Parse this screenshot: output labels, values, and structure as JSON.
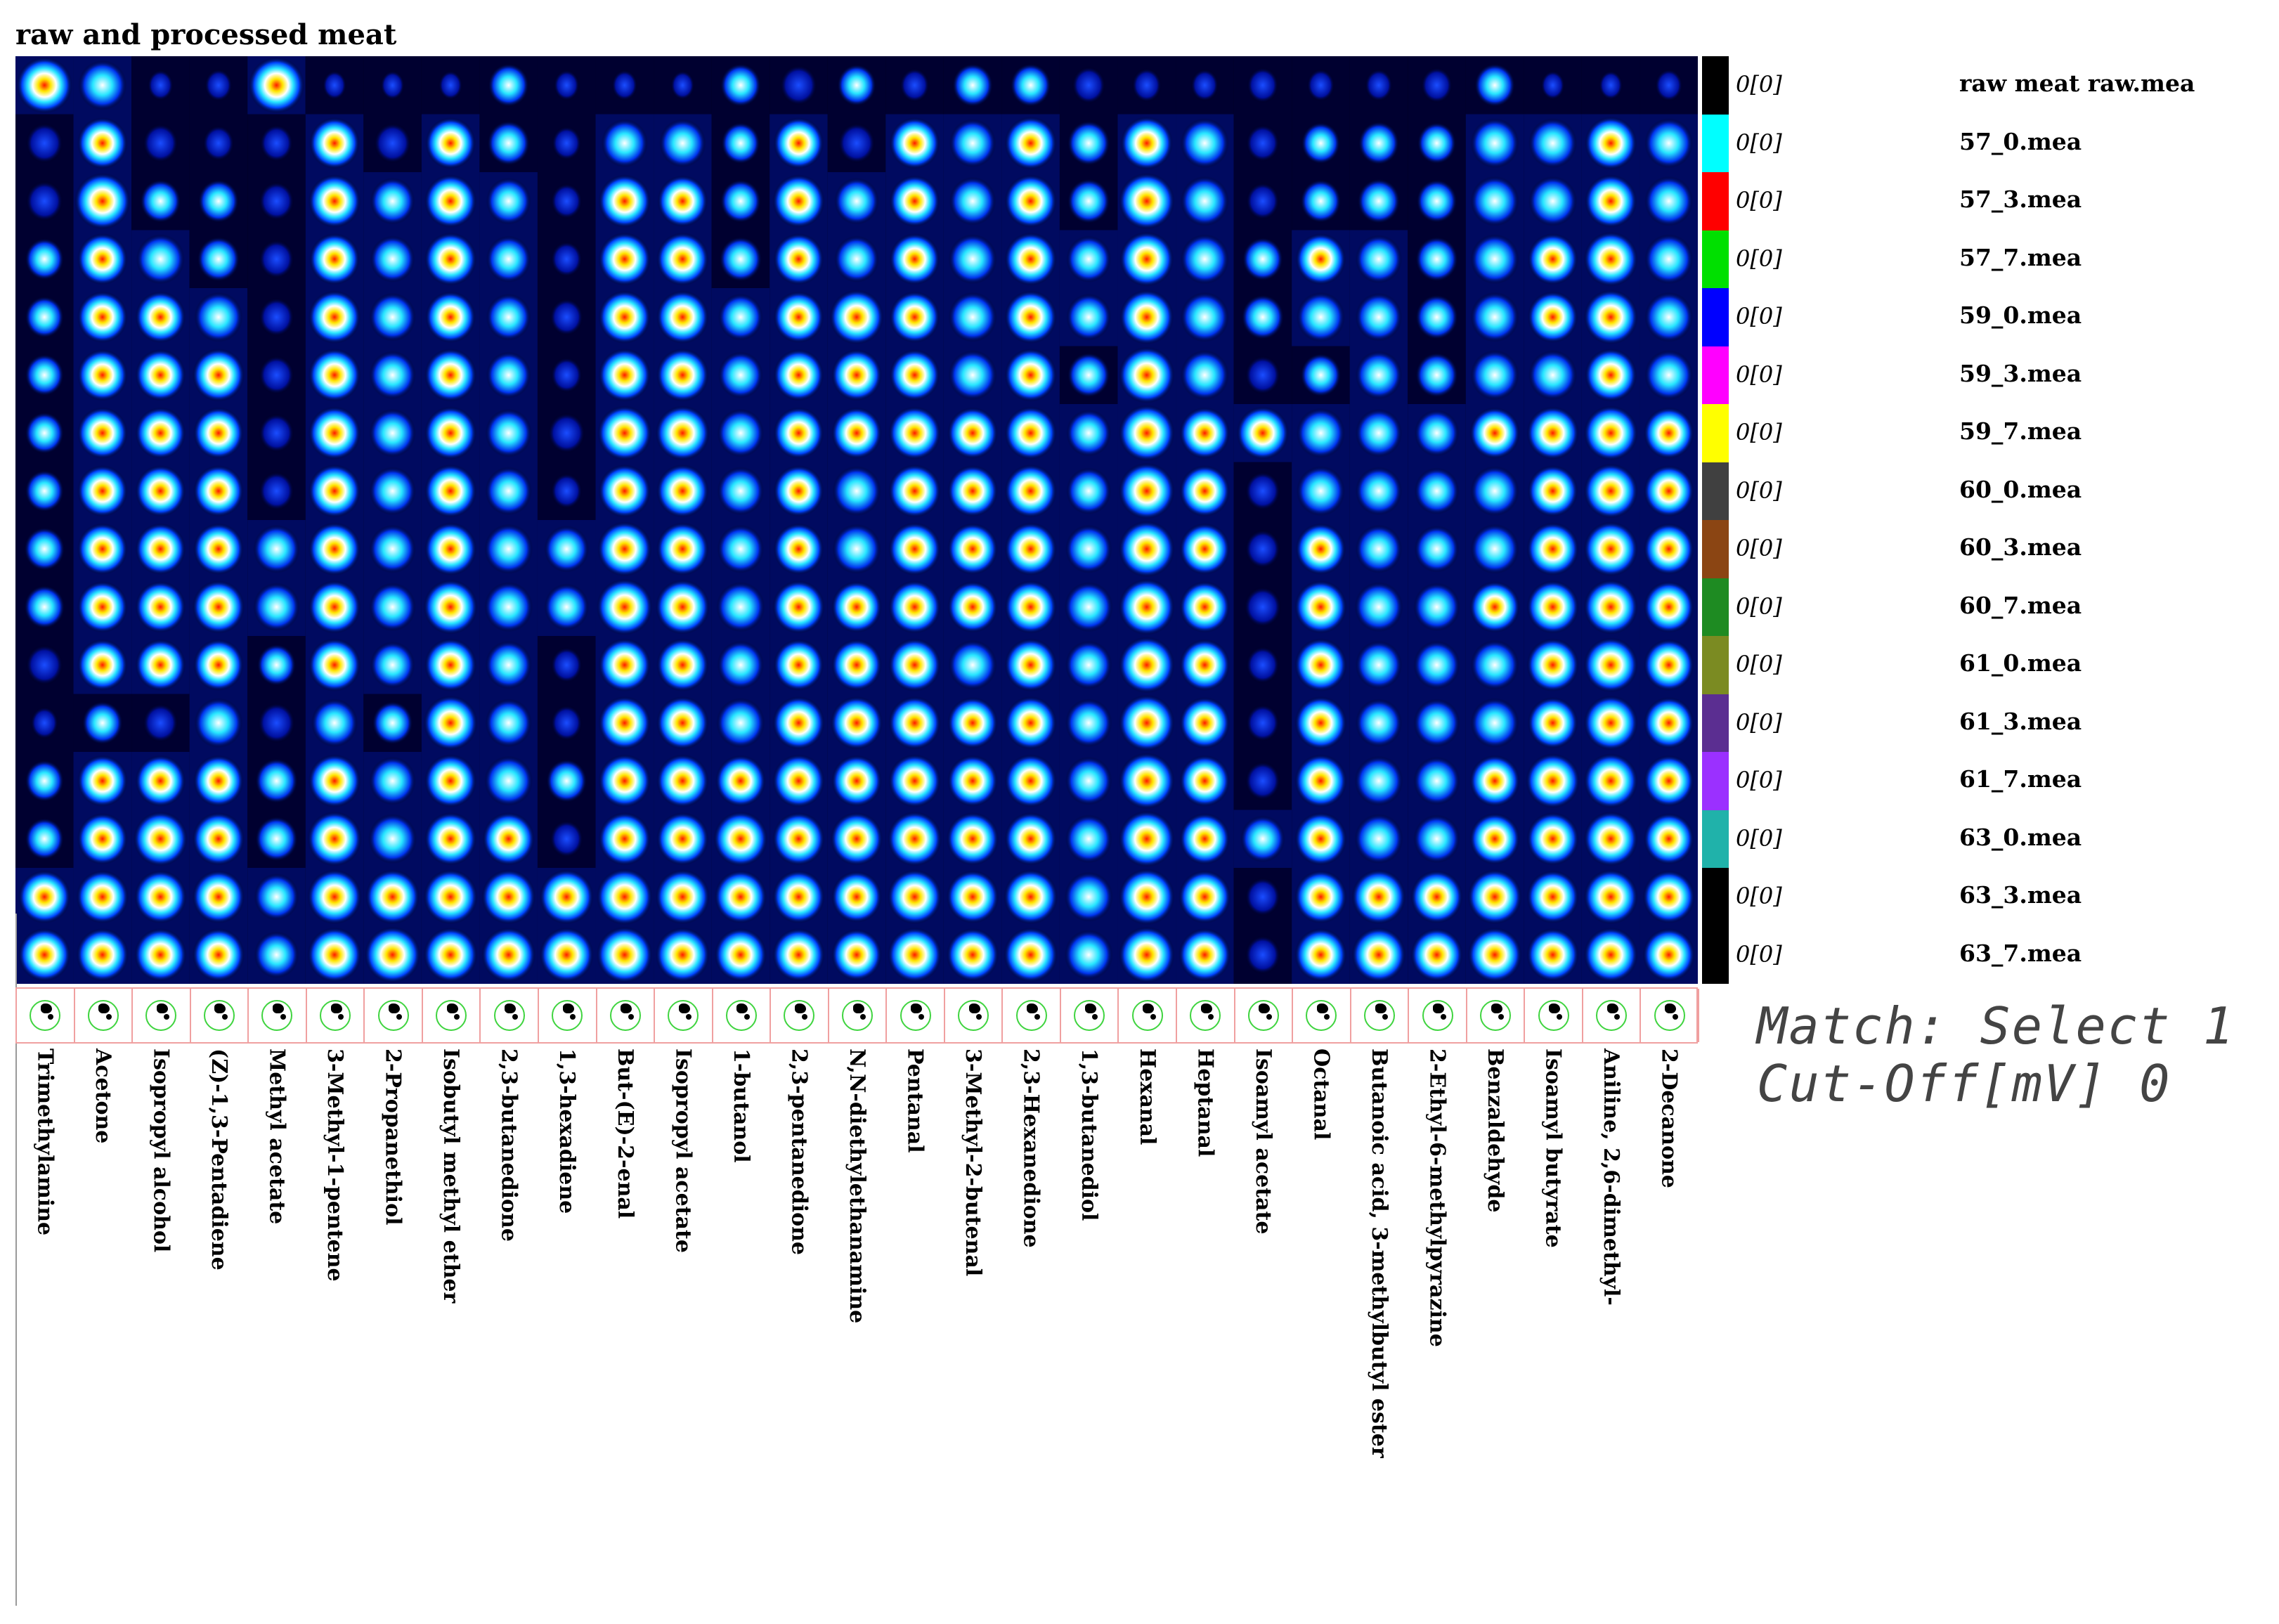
{
  "page": {
    "title": "raw and processed meat"
  },
  "status": {
    "match": "Match: Select 1",
    "cutoff": "Cut-Off[mV] 0"
  },
  "legend": {
    "header": "raw meat raw.mea",
    "zero_label": "0[0]",
    "colors": [
      "#000000",
      "#00ffff",
      "#ff0000",
      "#00e000",
      "#0000ff",
      "#ff00ff",
      "#ffff00",
      "#404040",
      "#8b4513",
      "#1e8b22",
      "#7b8b22",
      "#5b2e91",
      "#9b30ff",
      "#20b2aa",
      "#000000",
      "#000000"
    ]
  },
  "chart_data": {
    "type": "heatmap",
    "title": "raw and processed meat",
    "xlabel": "",
    "ylabel": "",
    "colormap": "black-blue-cyan-white-yellow-red",
    "value_range": [
      0,
      1
    ],
    "compounds": [
      "Trimethylamine",
      "Acetone",
      "Isopropyl alcohol",
      "(Z)-1,3-Pentadiene",
      "Methyl acetate",
      "3-Methyl-1-pentene",
      "2-Propanethiol",
      "Isobutyl methyl ether",
      "2,3-butanedione",
      "1,3-hexadiene",
      "But-(E)-2-enal",
      "Isopropyl acetate",
      "1-butanol",
      "2,3-pentanedione",
      "N,N-diethylethanamine",
      "Pentanal",
      "3-Methyl-2-butenal",
      "2,3-Hexanedione",
      "1,3-butanediol",
      "Hexanal",
      "Heptanal",
      "Isoamyl acetate",
      "Octanal",
      "Butanoic acid, 3-methylbutyl ester",
      "2-Ethyl-6-methylpyrazine",
      "Benzaldehyde",
      "Isoamyl butyrate",
      "Aniline, 2,6-dimethyl-",
      "2-Decanone"
    ],
    "samples": [
      "raw meat raw.mea",
      "57_0.mea",
      "57_3.mea",
      "57_7.mea",
      "59_0.mea",
      "59_3.mea",
      "59_7.mea",
      "60_0.mea",
      "60_3.mea",
      "60_7.mea",
      "61_0.mea",
      "61_3.mea",
      "61_7.mea",
      "63_0.mea",
      "63_3.mea",
      "63_7.mea"
    ],
    "sample_values": [
      "0[0]",
      "0[0]",
      "0[0]",
      "0[0]",
      "0[0]",
      "0[0]",
      "0[0]",
      "0[0]",
      "0[0]",
      "0[0]",
      "0[0]",
      "0[0]",
      "0[0]",
      "0[0]",
      "0[0]",
      "0[0]"
    ],
    "intensity": [
      [
        0.95,
        0.75,
        0.15,
        0.2,
        0.95,
        0.1,
        0.1,
        0.1,
        0.55,
        0.15,
        0.15,
        0.1,
        0.55,
        0.45,
        0.5,
        0.25,
        0.55,
        0.55,
        0.35,
        0.25,
        0.2,
        0.3,
        0.2,
        0.2,
        0.3,
        0.55,
        0.1,
        0.1,
        0.2
      ],
      [
        0.45,
        0.8,
        0.4,
        0.3,
        0.35,
        0.8,
        0.45,
        0.8,
        0.6,
        0.25,
        0.7,
        0.7,
        0.5,
        0.8,
        0.45,
        0.8,
        0.7,
        0.85,
        0.6,
        0.85,
        0.75,
        0.35,
        0.5,
        0.55,
        0.5,
        0.75,
        0.75,
        0.85,
        0.75
      ],
      [
        0.45,
        0.95,
        0.55,
        0.55,
        0.4,
        0.85,
        0.65,
        0.85,
        0.65,
        0.3,
        0.85,
        0.8,
        0.55,
        0.85,
        0.65,
        0.8,
        0.7,
        0.85,
        0.6,
        0.95,
        0.75,
        0.35,
        0.55,
        0.6,
        0.55,
        0.75,
        0.75,
        0.85,
        0.75
      ],
      [
        0.5,
        0.8,
        0.75,
        0.6,
        0.4,
        0.8,
        0.65,
        0.85,
        0.65,
        0.3,
        0.85,
        0.85,
        0.6,
        0.8,
        0.65,
        0.8,
        0.75,
        0.85,
        0.65,
        0.9,
        0.75,
        0.55,
        0.8,
        0.7,
        0.6,
        0.75,
        0.8,
        0.9,
        0.75
      ],
      [
        0.5,
        0.8,
        0.8,
        0.75,
        0.4,
        0.85,
        0.7,
        0.8,
        0.65,
        0.35,
        0.85,
        0.85,
        0.65,
        0.8,
        0.9,
        0.8,
        0.75,
        0.85,
        0.65,
        0.9,
        0.75,
        0.6,
        0.75,
        0.7,
        0.6,
        0.75,
        0.8,
        0.9,
        0.75
      ],
      [
        0.5,
        0.8,
        0.8,
        0.85,
        0.4,
        0.85,
        0.7,
        0.85,
        0.65,
        0.3,
        0.85,
        0.85,
        0.65,
        0.8,
        0.8,
        0.8,
        0.75,
        0.85,
        0.6,
        0.95,
        0.75,
        0.4,
        0.55,
        0.7,
        0.6,
        0.75,
        0.75,
        0.85,
        0.75
      ],
      [
        0.5,
        0.8,
        0.8,
        0.8,
        0.4,
        0.85,
        0.7,
        0.85,
        0.7,
        0.45,
        0.9,
        0.9,
        0.7,
        0.8,
        0.8,
        0.85,
        0.8,
        0.85,
        0.65,
        0.95,
        0.8,
        0.85,
        0.75,
        0.7,
        0.65,
        0.8,
        0.85,
        0.9,
        0.8
      ],
      [
        0.5,
        0.8,
        0.8,
        0.8,
        0.4,
        0.85,
        0.7,
        0.85,
        0.7,
        0.3,
        0.85,
        0.85,
        0.7,
        0.8,
        0.75,
        0.85,
        0.8,
        0.85,
        0.65,
        0.95,
        0.8,
        0.4,
        0.75,
        0.7,
        0.65,
        0.75,
        0.8,
        0.9,
        0.8
      ],
      [
        0.55,
        0.8,
        0.8,
        0.8,
        0.7,
        0.85,
        0.7,
        0.85,
        0.75,
        0.65,
        0.9,
        0.85,
        0.7,
        0.8,
        0.75,
        0.85,
        0.8,
        0.85,
        0.7,
        0.95,
        0.8,
        0.4,
        0.8,
        0.7,
        0.65,
        0.75,
        0.85,
        0.9,
        0.8
      ],
      [
        0.55,
        0.8,
        0.8,
        0.85,
        0.7,
        0.85,
        0.7,
        0.9,
        0.75,
        0.65,
        0.95,
        0.9,
        0.75,
        0.85,
        0.8,
        0.85,
        0.8,
        0.85,
        0.75,
        0.95,
        0.8,
        0.45,
        0.85,
        0.75,
        0.7,
        0.8,
        0.85,
        0.9,
        0.8
      ],
      [
        0.45,
        0.8,
        0.8,
        0.8,
        0.5,
        0.85,
        0.65,
        0.85,
        0.7,
        0.3,
        0.85,
        0.85,
        0.7,
        0.8,
        0.8,
        0.85,
        0.75,
        0.85,
        0.7,
        0.95,
        0.8,
        0.35,
        0.85,
        0.7,
        0.7,
        0.75,
        0.85,
        0.9,
        0.8
      ],
      [
        0.2,
        0.55,
        0.4,
        0.75,
        0.45,
        0.7,
        0.55,
        0.9,
        0.7,
        0.3,
        0.85,
        0.85,
        0.75,
        0.85,
        0.85,
        0.85,
        0.8,
        0.85,
        0.7,
        0.95,
        0.8,
        0.35,
        0.85,
        0.7,
        0.7,
        0.75,
        0.8,
        0.9,
        0.8
      ],
      [
        0.5,
        0.8,
        0.8,
        0.8,
        0.6,
        0.85,
        0.7,
        0.85,
        0.75,
        0.55,
        0.85,
        0.85,
        0.8,
        0.85,
        0.8,
        0.85,
        0.8,
        0.85,
        0.7,
        0.95,
        0.8,
        0.4,
        0.85,
        0.75,
        0.7,
        0.8,
        0.9,
        0.9,
        0.8
      ],
      [
        0.5,
        0.8,
        0.9,
        0.85,
        0.6,
        0.9,
        0.75,
        0.85,
        0.85,
        0.35,
        0.85,
        0.85,
        0.9,
        0.85,
        0.85,
        0.9,
        0.85,
        0.85,
        0.7,
        0.95,
        0.8,
        0.65,
        0.85,
        0.75,
        0.7,
        0.8,
        0.85,
        0.9,
        0.8
      ],
      [
        0.85,
        0.85,
        0.85,
        0.85,
        0.65,
        0.9,
        0.9,
        0.9,
        0.9,
        0.9,
        0.95,
        0.9,
        0.85,
        0.85,
        0.8,
        0.9,
        0.85,
        0.9,
        0.75,
        0.95,
        0.85,
        0.4,
        0.85,
        0.9,
        0.85,
        0.9,
        0.85,
        0.9,
        0.85
      ],
      [
        0.85,
        0.85,
        0.85,
        0.85,
        0.65,
        0.9,
        0.95,
        0.9,
        0.9,
        0.9,
        0.95,
        0.9,
        0.85,
        0.85,
        0.8,
        0.9,
        0.85,
        0.9,
        0.75,
        0.95,
        0.85,
        0.4,
        0.85,
        0.9,
        0.85,
        0.9,
        0.85,
        0.9,
        0.85
      ]
    ]
  }
}
